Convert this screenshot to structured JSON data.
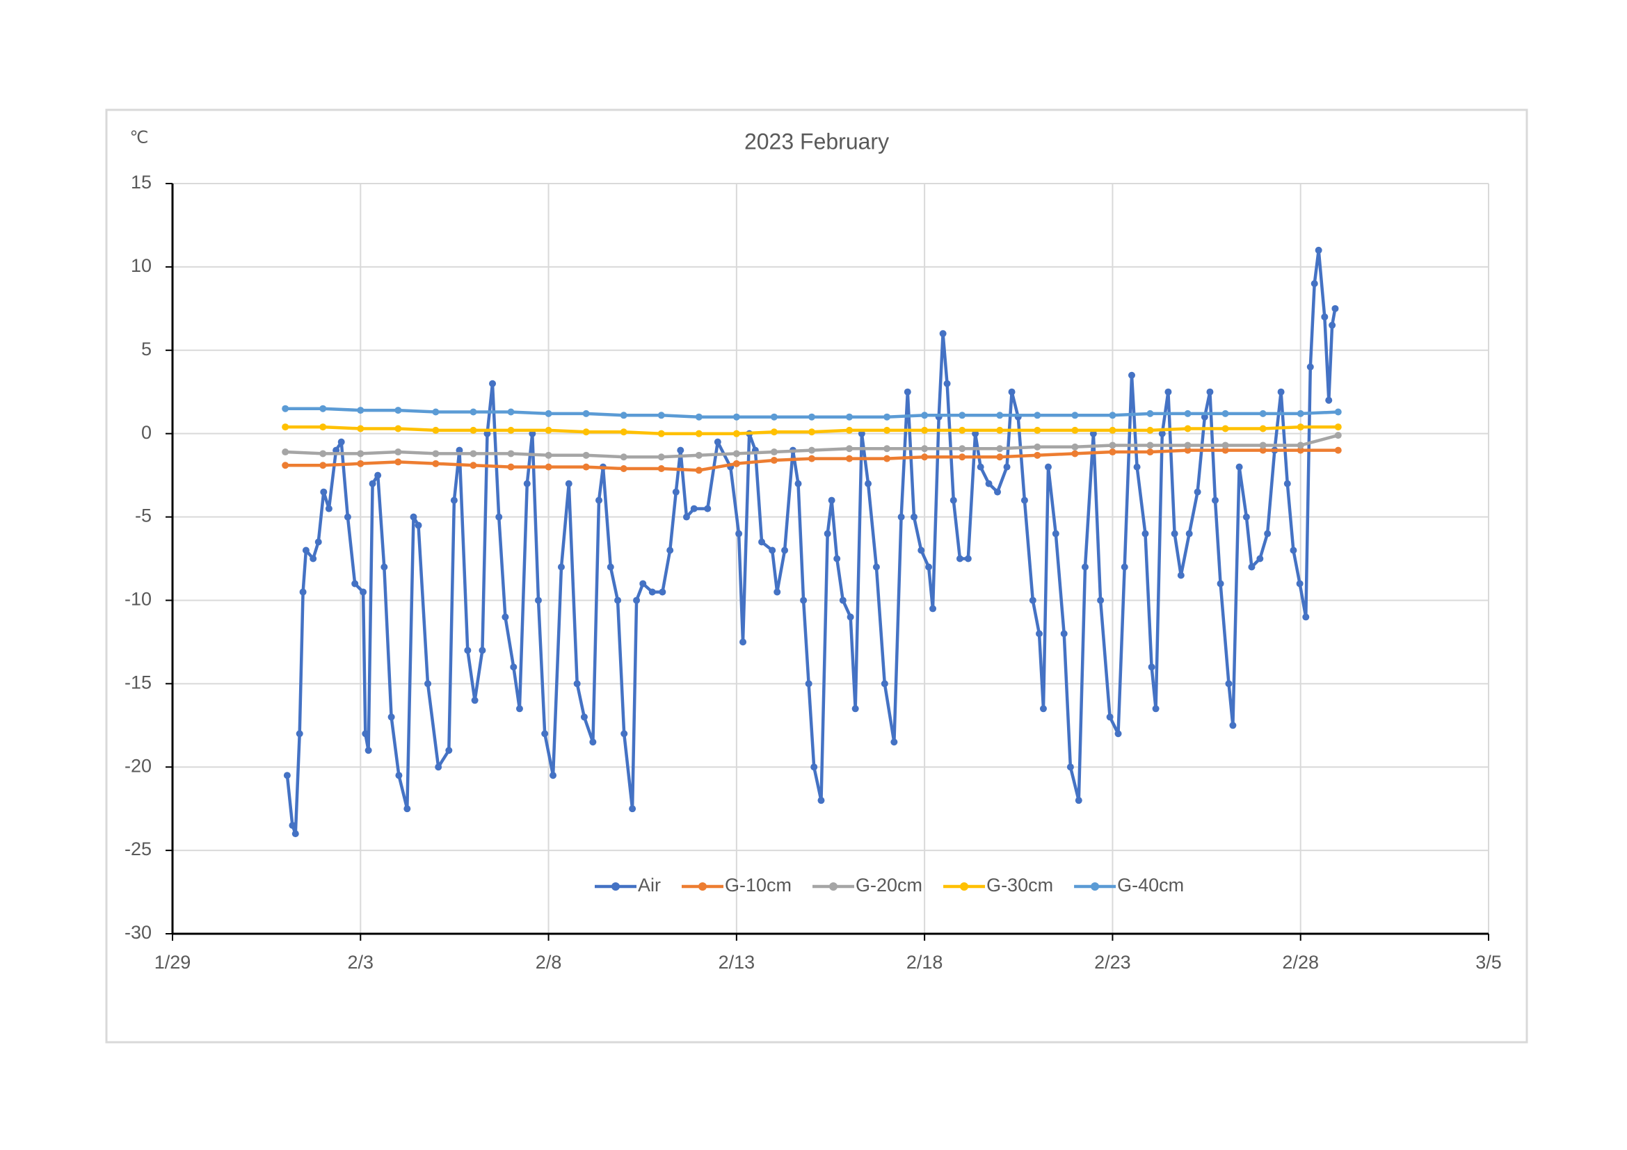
{
  "chart_data": {
    "type": "line",
    "title": "2023 February",
    "y_label": "℃",
    "xlim": [
      44955,
      44990
    ],
    "xticks": [
      {
        "value": 44955,
        "label": "1/29"
      },
      {
        "value": 44960,
        "label": "2/3"
      },
      {
        "value": 44965,
        "label": "2/8"
      },
      {
        "value": 44970,
        "label": "2/13"
      },
      {
        "value": 44975,
        "label": "2/18"
      },
      {
        "value": 44980,
        "label": "2/23"
      },
      {
        "value": 44985,
        "label": "2/28"
      },
      {
        "value": 44990,
        "label": "3/5"
      }
    ],
    "ylim": [
      -30,
      15
    ],
    "yticks": [
      15,
      10,
      5,
      0,
      -5,
      -10,
      -15,
      -20,
      -25,
      -30
    ],
    "grid": true,
    "legend": "bottom",
    "series": [
      {
        "name": "Air",
        "color": "#4472c4",
        "x": [
          44958.05,
          44958.19,
          44958.27,
          44958.38,
          44958.47,
          44958.55,
          44958.74,
          44958.88,
          44959.02,
          44959.16,
          44959.35,
          44959.49,
          44959.66,
          44959.85,
          44960.07,
          44960.13,
          44960.21,
          44960.32,
          44960.46,
          44960.63,
          44960.82,
          44961.02,
          44961.24,
          44961.41,
          44961.54,
          44961.79,
          44962.07,
          44962.35,
          44962.49,
          44962.63,
          44962.85,
          44963.04,
          44963.24,
          44963.37,
          44963.51,
          44963.68,
          44963.85,
          44964.07,
          44964.23,
          44964.43,
          44964.57,
          44964.73,
          44964.9,
          44965.12,
          44965.34,
          44965.54,
          44965.76,
          44965.95,
          44966.18,
          44966.34,
          44966.45,
          44966.65,
          44966.84,
          44967.01,
          44967.23,
          44967.34,
          44967.51,
          44967.76,
          44968.03,
          44968.23,
          44968.39,
          44968.51,
          44968.67,
          44968.87,
          44969.23,
          44969.5,
          44969.84,
          44970.06,
          44970.17,
          44970.34,
          44970.5,
          44970.67,
          44970.95,
          44971.08,
          44971.28,
          44971.5,
          44971.64,
          44971.78,
          44971.92,
          44972.06,
          44972.25,
          44972.42,
          44972.53,
          44972.67,
          44972.83,
          44973.03,
          44973.16,
          44973.33,
          44973.5,
          44973.72,
          44973.94,
          44974.19,
          44974.38,
          44974.55,
          44974.72,
          44974.91,
          44975.11,
          44975.22,
          44975.38,
          44975.49,
          44975.6,
          44975.77,
          44975.94,
          44976.16,
          44976.35,
          44976.49,
          44976.71,
          44976.94,
          44977.19,
          44977.32,
          44977.49,
          44977.66,
          44977.88,
          44978.05,
          44978.16,
          44978.29,
          44978.49,
          44978.71,
          44978.88,
          44979.1,
          44979.27,
          44979.49,
          44979.68,
          44979.93,
          44980.15,
          44980.32,
          44980.51,
          44980.65,
          44980.87,
          44981.04,
          44981.15,
          44981.32,
          44981.48,
          44981.65,
          44981.82,
          44982.04,
          44982.26,
          44982.45,
          44982.59,
          44982.73,
          44982.87,
          44983.09,
          44983.2,
          44983.37,
          44983.56,
          44983.7,
          44983.92,
          44984.12,
          44984.31,
          44984.48,
          44984.65,
          44984.81,
          44984.98,
          44985.14,
          44985.26,
          44985.37,
          44985.48,
          44985.64,
          44985.75,
          44985.84,
          44985.92
        ],
        "values": [
          -20.5,
          -23.5,
          -24,
          -18,
          -9.5,
          -7,
          -7.5,
          -6.5,
          -3.5,
          -4.5,
          -1,
          -0.5,
          -5,
          -9,
          -9.5,
          -18,
          -19,
          -3,
          -2.5,
          -8,
          -17,
          -20.5,
          -22.5,
          -5,
          -5.5,
          -15,
          -20,
          -19,
          -4,
          -1,
          -13,
          -16,
          -13,
          0,
          3,
          -5,
          -11,
          -14,
          -16.5,
          -3,
          0,
          -10,
          -18,
          -20.5,
          -8,
          -3,
          -15,
          -17,
          -18.5,
          -4,
          -2,
          -8,
          -10,
          -18,
          -22.5,
          -10,
          -9,
          -9.5,
          -9.5,
          -7,
          -3.5,
          -1,
          -5,
          -4.5,
          -4.5,
          -0.5,
          -2,
          -6,
          -12.5,
          0,
          -1,
          -6.5,
          -7,
          -9.5,
          -7,
          -1,
          -3,
          -10,
          -15,
          -20,
          -22,
          -6,
          -4,
          -7.5,
          -10,
          -11,
          -16.5,
          0,
          -3,
          -8,
          -15,
          -18.5,
          -5,
          2.5,
          -5,
          -7,
          -8,
          -10.5,
          1,
          6,
          3,
          -4,
          -7.5,
          -7.5,
          0,
          -2,
          -3,
          -3.5,
          -2,
          2.5,
          1,
          -4,
          -10,
          -12,
          -16.5,
          -2,
          -6,
          -12,
          -20,
          -22,
          -8,
          0,
          -10,
          -17,
          -18,
          -8,
          3.5,
          -2,
          -6,
          -14,
          -16.5,
          0,
          2.5,
          -6,
          -8.5,
          -6,
          -3.5,
          1,
          2.5,
          -4,
          -9,
          -15,
          -17.5,
          -2,
          -5,
          -8,
          -7.5,
          -6,
          -1,
          2.5,
          -3,
          -7,
          -9,
          -11,
          4,
          9,
          11,
          7,
          2,
          6.5,
          7.5
        ]
      },
      {
        "name": "G-10cm",
        "color": "#ed7d31",
        "x": [
          44958,
          44959,
          44960,
          44961,
          44962,
          44963,
          44964,
          44965,
          44966,
          44967,
          44968,
          44969,
          44970,
          44971,
          44972,
          44973,
          44974,
          44975,
          44976,
          44977,
          44978,
          44979,
          44980,
          44981,
          44982,
          44983,
          44984,
          44985,
          44986
        ],
        "values": [
          -1.9,
          -1.9,
          -1.8,
          -1.7,
          -1.8,
          -1.9,
          -2.0,
          -2.0,
          -2.0,
          -2.1,
          -2.1,
          -2.2,
          -1.8,
          -1.6,
          -1.5,
          -1.5,
          -1.5,
          -1.4,
          -1.4,
          -1.4,
          -1.3,
          -1.2,
          -1.1,
          -1.1,
          -1.0,
          -1.0,
          -1.0,
          -1.0,
          -1.0
        ]
      },
      {
        "name": "G-20cm",
        "color": "#a5a5a5",
        "x": [
          44958,
          44959,
          44960,
          44961,
          44962,
          44963,
          44964,
          44965,
          44966,
          44967,
          44968,
          44969,
          44970,
          44971,
          44972,
          44973,
          44974,
          44975,
          44976,
          44977,
          44978,
          44979,
          44980,
          44981,
          44982,
          44983,
          44984,
          44985,
          44986
        ],
        "values": [
          -1.1,
          -1.2,
          -1.2,
          -1.1,
          -1.2,
          -1.2,
          -1.2,
          -1.3,
          -1.3,
          -1.4,
          -1.4,
          -1.3,
          -1.2,
          -1.1,
          -1.0,
          -0.9,
          -0.9,
          -0.9,
          -0.9,
          -0.9,
          -0.8,
          -0.8,
          -0.7,
          -0.7,
          -0.7,
          -0.7,
          -0.7,
          -0.7,
          -0.1
        ]
      },
      {
        "name": "G-30cm",
        "color": "#ffc000",
        "x": [
          44958,
          44959,
          44960,
          44961,
          44962,
          44963,
          44964,
          44965,
          44966,
          44967,
          44968,
          44969,
          44970,
          44971,
          44972,
          44973,
          44974,
          44975,
          44976,
          44977,
          44978,
          44979,
          44980,
          44981,
          44982,
          44983,
          44984,
          44985,
          44986
        ],
        "values": [
          0.4,
          0.4,
          0.3,
          0.3,
          0.2,
          0.2,
          0.2,
          0.2,
          0.1,
          0.1,
          0.0,
          0.0,
          0.0,
          0.1,
          0.1,
          0.2,
          0.2,
          0.2,
          0.2,
          0.2,
          0.2,
          0.2,
          0.2,
          0.2,
          0.3,
          0.3,
          0.3,
          0.4,
          0.4
        ]
      },
      {
        "name": "G-40cm",
        "color": "#5b9bd5",
        "x": [
          44958,
          44959,
          44960,
          44961,
          44962,
          44963,
          44964,
          44965,
          44966,
          44967,
          44968,
          44969,
          44970,
          44971,
          44972,
          44973,
          44974,
          44975,
          44976,
          44977,
          44978,
          44979,
          44980,
          44981,
          44982,
          44983,
          44984,
          44985,
          44986
        ],
        "values": [
          1.5,
          1.5,
          1.4,
          1.4,
          1.3,
          1.3,
          1.3,
          1.2,
          1.2,
          1.1,
          1.1,
          1.0,
          1.0,
          1.0,
          1.0,
          1.0,
          1.0,
          1.1,
          1.1,
          1.1,
          1.1,
          1.1,
          1.1,
          1.2,
          1.2,
          1.2,
          1.2,
          1.2,
          1.3
        ]
      }
    ]
  }
}
